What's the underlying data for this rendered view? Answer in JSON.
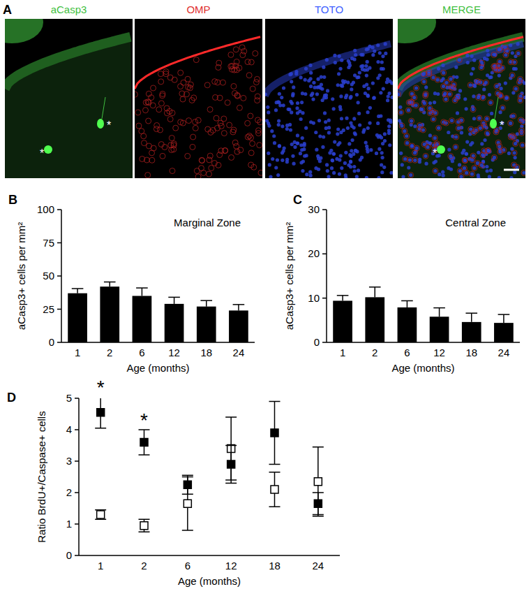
{
  "image_panel": {
    "label": "A",
    "titles": [
      "aCasp3",
      "OMP",
      "TOTO",
      "MERGE"
    ],
    "marker": "*"
  },
  "chart_data": [
    {
      "type": "bar",
      "panel_label": "B",
      "title": "Marginal Zone",
      "categories": [
        "1",
        "2",
        "6",
        "12",
        "18",
        "24"
      ],
      "values": [
        37,
        42,
        35,
        29,
        27,
        24
      ],
      "errors": [
        3.5,
        3.5,
        6,
        5,
        4.5,
        4.5
      ],
      "color": "#000000",
      "xlabel": "Age (months)",
      "ylabel": "aCasp3+ cells per mm²",
      "ylim": [
        0,
        100
      ],
      "yticks": [
        0,
        25,
        50,
        75,
        100
      ]
    },
    {
      "type": "bar",
      "panel_label": "C",
      "title": "Central Zone",
      "categories": [
        "1",
        "2",
        "6",
        "12",
        "18",
        "24"
      ],
      "values": [
        9.4,
        10.2,
        7.9,
        5.8,
        4.6,
        4.4
      ],
      "errors": [
        1.2,
        2.3,
        1.5,
        2,
        2,
        1.9
      ],
      "color": "#000000",
      "xlabel": "Age (months)",
      "ylabel": "aCasp3+ cells per mm²",
      "ylim": [
        0,
        30
      ],
      "yticks": [
        0,
        10,
        20,
        30
      ]
    },
    {
      "type": "scatter",
      "panel_label": "D",
      "categories": [
        "1",
        "2",
        "6",
        "12",
        "18",
        "24"
      ],
      "series": [
        {
          "color": "#000000",
          "marker": "open-square",
          "values": [
            1.3,
            0.95,
            1.65,
            3.4,
            2.1,
            2.35
          ],
          "errors": [
            0.15,
            0.2,
            0.85,
            1.0,
            0.55,
            1.1
          ]
        },
        {
          "color": "#000000",
          "marker": "filled-square",
          "values": [
            4.55,
            3.6,
            2.25,
            2.9,
            3.9,
            1.65
          ],
          "errors": [
            0.5,
            0.4,
            0.3,
            0.6,
            1.0,
            0.35
          ]
        }
      ],
      "annotations": [
        {
          "text": "*",
          "category": "1"
        },
        {
          "text": "*",
          "category": "2"
        }
      ],
      "xlabel": "Age (months)",
      "ylabel": "Ratio BrdU+/Caspase+ cells",
      "ylim": [
        0,
        5
      ],
      "yticks": [
        0,
        1,
        2,
        3,
        4,
        5
      ]
    }
  ]
}
